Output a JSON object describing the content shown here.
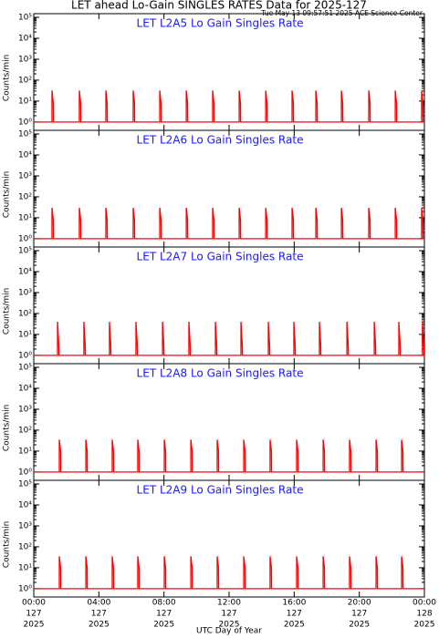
{
  "chart_data": [
    {
      "type": "line",
      "title": "LET ahead Lo-Gain SINGLES RATES Data for 2025-127",
      "subtitle": "Tue May 13 09:57:51 2025 ACE Science Center",
      "panel_title": "LET L2A5 Lo Gain Singles Rate",
      "ylabel": "Counts/min",
      "color": "#ff0000",
      "log_y": true,
      "xlim": [
        0,
        24
      ],
      "ylim": [
        0.4,
        150000
      ],
      "yticks": [
        {
          "value": 1,
          "label": "10⁰"
        },
        {
          "value": 10,
          "label": "10¹"
        },
        {
          "value": 100,
          "label": "10²"
        },
        {
          "value": 1000,
          "label": "10³"
        },
        {
          "value": 10000,
          "label": "10⁴"
        },
        {
          "value": 100000,
          "label": "10⁵"
        }
      ],
      "x": [
        0,
        1.12,
        1.12,
        1.2,
        1.21,
        2.8,
        2.8,
        2.88,
        2.89,
        4.43,
        4.43,
        4.51,
        4.52,
        6.11,
        6.11,
        6.19,
        6.2,
        7.74,
        7.74,
        7.82,
        7.83,
        9.37,
        9.37,
        9.45,
        9.46,
        10.99,
        10.99,
        11.07,
        11.08,
        12.62,
        12.62,
        12.7,
        12.71,
        14.25,
        14.25,
        14.33,
        14.34,
        15.87,
        15.87,
        15.95,
        15.96,
        17.33,
        17.33,
        17.41,
        17.42,
        18.9,
        18.9,
        18.98,
        18.99,
        20.58,
        20.58,
        20.66,
        20.67,
        22.21,
        22.21,
        22.29,
        22.3,
        23.83,
        23.83,
        23.91,
        23.92,
        24
      ],
      "values": [
        1,
        1,
        32,
        8,
        1,
        1,
        32,
        8,
        1,
        1,
        32,
        8,
        1,
        1,
        32,
        8,
        1,
        1,
        32,
        8,
        1,
        1,
        32,
        8,
        1,
        1,
        32,
        8,
        1,
        1,
        32,
        8,
        1,
        1,
        32,
        8,
        1,
        1,
        32,
        8,
        1,
        1,
        32,
        8,
        1,
        1,
        32,
        8,
        1,
        1,
        32,
        8,
        1,
        1,
        32,
        8,
        1,
        1,
        32,
        8,
        1,
        1
      ]
    },
    {
      "type": "line",
      "panel_title": "LET L2A6 Lo Gain Singles Rate",
      "ylabel": "Counts/min",
      "color": "#ff0000",
      "log_y": true,
      "xlim": [
        0,
        24
      ],
      "ylim": [
        0.4,
        150000
      ],
      "yticks": [
        {
          "value": 1,
          "label": "10⁰"
        },
        {
          "value": 10,
          "label": "10¹"
        },
        {
          "value": 100,
          "label": "10²"
        },
        {
          "value": 1000,
          "label": "10³"
        },
        {
          "value": 10000,
          "label": "10⁴"
        },
        {
          "value": 100000,
          "label": "10⁵"
        }
      ],
      "x": [
        0,
        1.12,
        1.12,
        1.2,
        1.21,
        2.8,
        2.8,
        2.88,
        2.89,
        4.43,
        4.43,
        4.51,
        4.52,
        6.11,
        6.11,
        6.19,
        6.2,
        7.74,
        7.74,
        7.82,
        7.83,
        9.37,
        9.37,
        9.45,
        9.46,
        10.99,
        10.99,
        11.07,
        11.08,
        12.62,
        12.62,
        12.7,
        12.71,
        14.25,
        14.25,
        14.33,
        14.34,
        15.87,
        15.87,
        15.95,
        15.96,
        17.33,
        17.33,
        17.41,
        17.42,
        18.9,
        18.9,
        18.98,
        18.99,
        20.58,
        20.58,
        20.66,
        20.67,
        22.21,
        22.21,
        22.29,
        22.3,
        23.83,
        23.83,
        23.91,
        23.92,
        24
      ],
      "values": [
        1,
        1,
        30,
        8,
        1,
        1,
        30,
        8,
        1,
        1,
        30,
        8,
        1,
        1,
        30,
        8,
        1,
        1,
        30,
        8,
        1,
        1,
        30,
        8,
        1,
        1,
        30,
        8,
        1,
        1,
        30,
        8,
        1,
        1,
        30,
        8,
        1,
        1,
        30,
        8,
        1,
        1,
        30,
        8,
        1,
        1,
        30,
        8,
        1,
        1,
        30,
        8,
        1,
        1,
        30,
        8,
        1,
        1,
        30,
        8,
        1,
        1
      ]
    },
    {
      "type": "line",
      "panel_title": "LET L2A7 Lo Gain Singles Rate",
      "ylabel": "Counts/min",
      "color": "#ff0000",
      "log_y": true,
      "xlim": [
        0,
        24
      ],
      "ylim": [
        0.4,
        150000
      ],
      "yticks": [
        {
          "value": 1,
          "label": "10⁰"
        },
        {
          "value": 10,
          "label": "10¹"
        },
        {
          "value": 100,
          "label": "10²"
        },
        {
          "value": 1000,
          "label": "10³"
        },
        {
          "value": 10000,
          "label": "10⁴"
        },
        {
          "value": 100000,
          "label": "10⁵"
        }
      ],
      "x": [
        0,
        1.46,
        1.46,
        1.54,
        1.55,
        3.08,
        3.08,
        3.16,
        3.17,
        4.65,
        4.65,
        4.73,
        4.74,
        6.28,
        6.28,
        6.36,
        6.37,
        7.91,
        7.91,
        7.99,
        8.0,
        9.53,
        9.53,
        9.61,
        9.62,
        11.16,
        11.16,
        11.24,
        11.25,
        12.73,
        12.73,
        12.81,
        12.82,
        14.41,
        14.41,
        14.49,
        14.5,
        15.98,
        15.98,
        16.06,
        16.07,
        17.55,
        17.55,
        17.63,
        17.64,
        19.24,
        19.24,
        19.32,
        19.33,
        20.92,
        20.92,
        21.0,
        21.01,
        22.43,
        22.43,
        22.51,
        22.52,
        23.88,
        23.88,
        23.96,
        23.97,
        24
      ],
      "values": [
        1,
        1,
        40,
        3,
        1,
        1,
        40,
        3,
        1,
        1,
        40,
        3,
        1,
        1,
        40,
        3,
        1,
        1,
        40,
        3,
        1,
        1,
        40,
        3,
        1,
        1,
        40,
        3,
        1,
        1,
        40,
        3,
        1,
        1,
        40,
        3,
        1,
        1,
        40,
        3,
        1,
        1,
        40,
        3,
        1,
        1,
        40,
        3,
        1,
        1,
        40,
        3,
        1,
        1,
        40,
        3,
        1,
        1,
        40,
        3,
        1,
        1
      ]
    },
    {
      "type": "line",
      "panel_title": "LET L2A8 Lo Gain Singles Rate",
      "ylabel": "Counts/min",
      "color": "#ff0000",
      "log_y": true,
      "xlim": [
        0,
        24
      ],
      "ylim": [
        0.4,
        150000
      ],
      "yticks": [
        {
          "value": 1,
          "label": "10⁰"
        },
        {
          "value": 10,
          "label": "10¹"
        },
        {
          "value": 100,
          "label": "10²"
        },
        {
          "value": 1000,
          "label": "10³"
        },
        {
          "value": 10000,
          "label": "10⁴"
        },
        {
          "value": 100000,
          "label": "10⁵"
        }
      ],
      "x": [
        0,
        1.57,
        1.57,
        1.65,
        1.66,
        3.2,
        3.2,
        3.28,
        3.29,
        4.82,
        4.82,
        4.9,
        4.91,
        6.39,
        6.39,
        6.47,
        6.48,
        8.02,
        8.02,
        8.1,
        8.11,
        9.65,
        9.65,
        9.73,
        9.74,
        11.27,
        11.27,
        11.35,
        11.36,
        12.9,
        12.9,
        12.98,
        12.99,
        14.52,
        14.52,
        14.6,
        14.61,
        16.15,
        16.15,
        16.23,
        16.24,
        17.78,
        17.78,
        17.86,
        17.87,
        19.4,
        19.4,
        19.48,
        19.49,
        21.03,
        21.03,
        21.11,
        21.12,
        22.6,
        22.6,
        22.68,
        22.69,
        24
      ],
      "values": [
        1,
        1,
        35,
        10,
        1,
        1,
        35,
        10,
        1,
        1,
        35,
        10,
        1,
        1,
        35,
        10,
        1,
        1,
        35,
        10,
        1,
        1,
        35,
        10,
        1,
        1,
        35,
        10,
        1,
        1,
        35,
        10,
        1,
        1,
        35,
        10,
        1,
        1,
        35,
        10,
        1,
        1,
        35,
        10,
        1,
        1,
        35,
        10,
        1,
        1,
        35,
        10,
        1,
        1,
        35,
        10,
        1,
        1
      ]
    },
    {
      "type": "line",
      "panel_title": "LET L2A9 Lo Gain Singles Rate",
      "ylabel": "Counts/min",
      "xlabel": "UTC Day of Year",
      "color": "#ff0000",
      "log_y": true,
      "xlim": [
        0,
        24
      ],
      "ylim": [
        0.4,
        150000
      ],
      "yticks": [
        {
          "value": 1,
          "label": "10⁰"
        },
        {
          "value": 10,
          "label": "10¹"
        },
        {
          "value": 100,
          "label": "10²"
        },
        {
          "value": 1000,
          "label": "10³"
        },
        {
          "value": 10000,
          "label": "10⁴"
        },
        {
          "value": 100000,
          "label": "10⁵"
        }
      ],
      "xticks": [
        {
          "value": 0,
          "label": [
            "00:00",
            "127",
            "2025"
          ]
        },
        {
          "value": 4,
          "label": [
            "04:00",
            "127",
            "2025"
          ]
        },
        {
          "value": 8,
          "label": [
            "08:00",
            "127",
            "2025"
          ]
        },
        {
          "value": 12,
          "label": [
            "12:00",
            "127",
            "2025"
          ]
        },
        {
          "value": 16,
          "label": [
            "16:00",
            "127",
            "2025"
          ]
        },
        {
          "value": 20,
          "label": [
            "20:00",
            "127",
            "2025"
          ]
        },
        {
          "value": 24,
          "label": [
            "00:00",
            "128",
            "2025"
          ]
        }
      ],
      "x": [
        0,
        1.57,
        1.57,
        1.65,
        1.66,
        3.2,
        3.2,
        3.28,
        3.29,
        4.82,
        4.82,
        4.9,
        4.91,
        6.39,
        6.39,
        6.47,
        6.48,
        8.02,
        8.02,
        8.1,
        8.11,
        9.65,
        9.65,
        9.73,
        9.74,
        11.27,
        11.27,
        11.35,
        11.36,
        12.9,
        12.9,
        12.98,
        12.99,
        14.52,
        14.52,
        14.6,
        14.61,
        16.15,
        16.15,
        16.23,
        16.24,
        17.78,
        17.78,
        17.86,
        17.87,
        19.4,
        19.4,
        19.48,
        19.49,
        21.03,
        21.03,
        21.11,
        21.12,
        22.6,
        22.6,
        22.68,
        22.69,
        24
      ],
      "values": [
        1,
        1,
        35,
        10,
        1,
        1,
        35,
        10,
        1,
        1,
        35,
        10,
        1,
        1,
        35,
        10,
        1,
        1,
        35,
        10,
        1,
        1,
        35,
        10,
        1,
        1,
        35,
        10,
        1,
        1,
        35,
        10,
        1,
        1,
        35,
        10,
        1,
        1,
        35,
        10,
        1,
        1,
        35,
        10,
        1,
        1,
        35,
        10,
        1,
        1,
        35,
        10,
        1,
        1,
        35,
        10,
        1,
        1
      ]
    }
  ]
}
